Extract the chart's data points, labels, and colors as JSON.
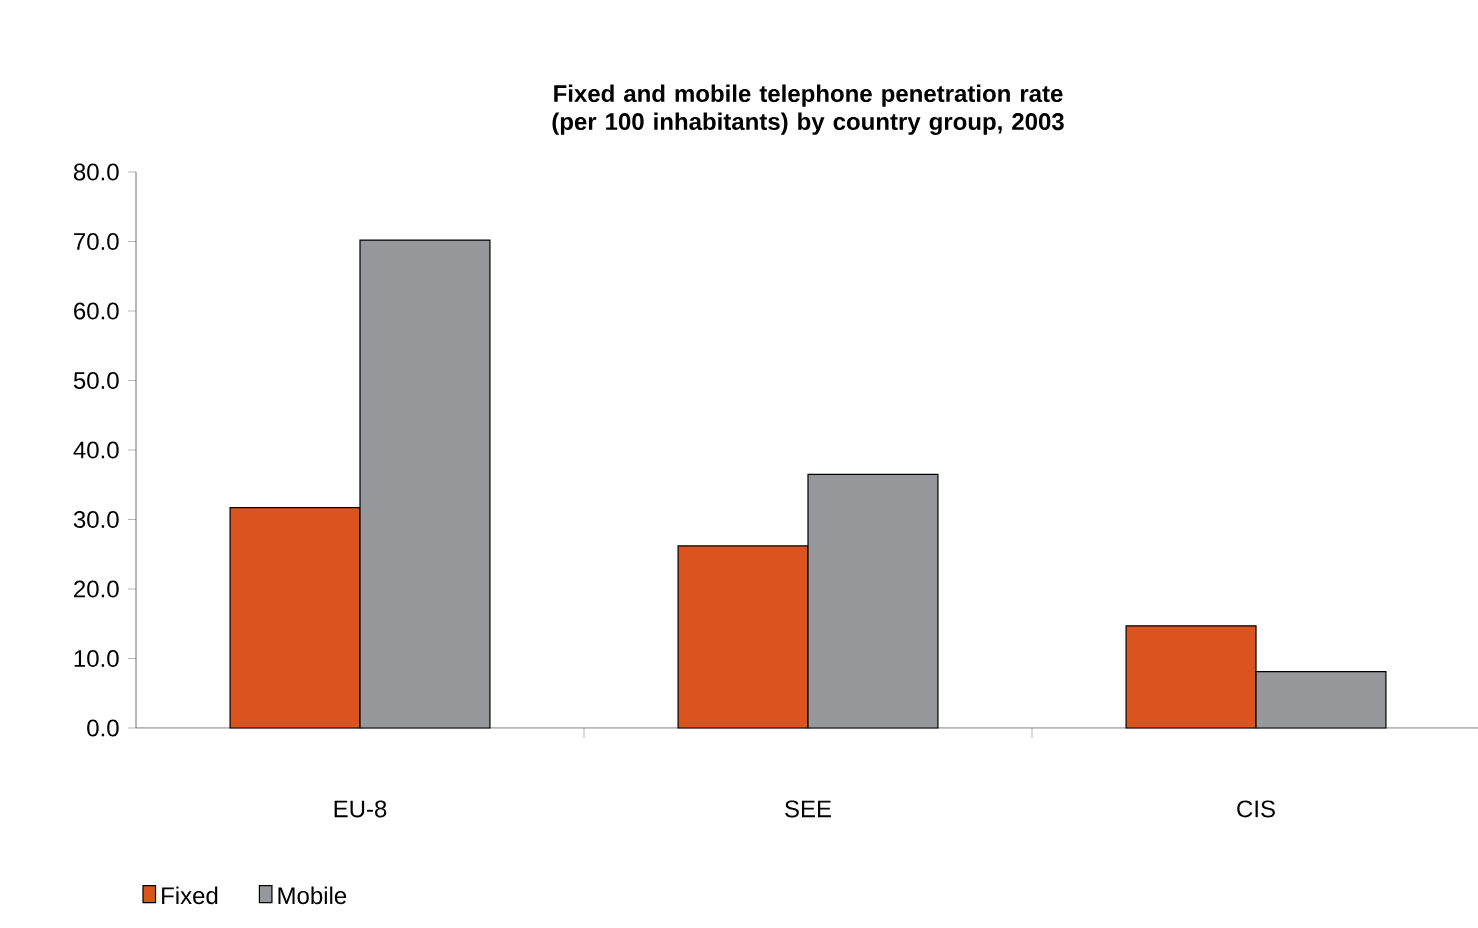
{
  "chart_data": {
    "type": "bar",
    "title": "Fixed and mobile telephone penetration rate (per 100 inhabitants) by country group, 2003",
    "categories": [
      "EU-8",
      "SEE",
      "CIS"
    ],
    "series": [
      {
        "name": "Fixed",
        "color": "#d9541e",
        "values": [
          31.7,
          26.2,
          14.7
        ]
      },
      {
        "name": "Mobile",
        "color": "#97989c",
        "values": [
          70.2,
          36.5,
          8.1
        ]
      }
    ],
    "ylim": [
      0,
      80
    ],
    "yticks": [
      {
        "value": 0,
        "label": "0.0"
      },
      {
        "value": 10,
        "label": "10.0"
      },
      {
        "value": 20,
        "label": "20.0"
      },
      {
        "value": 30,
        "label": "30.0"
      },
      {
        "value": 40,
        "label": "40.0"
      },
      {
        "value": 50,
        "label": "50.0"
      },
      {
        "value": 60,
        "label": "60.0"
      },
      {
        "value": 70,
        "label": "70.0"
      },
      {
        "value": 80,
        "label": "80.0"
      }
    ],
    "grid": false,
    "legend": "bottom left"
  }
}
